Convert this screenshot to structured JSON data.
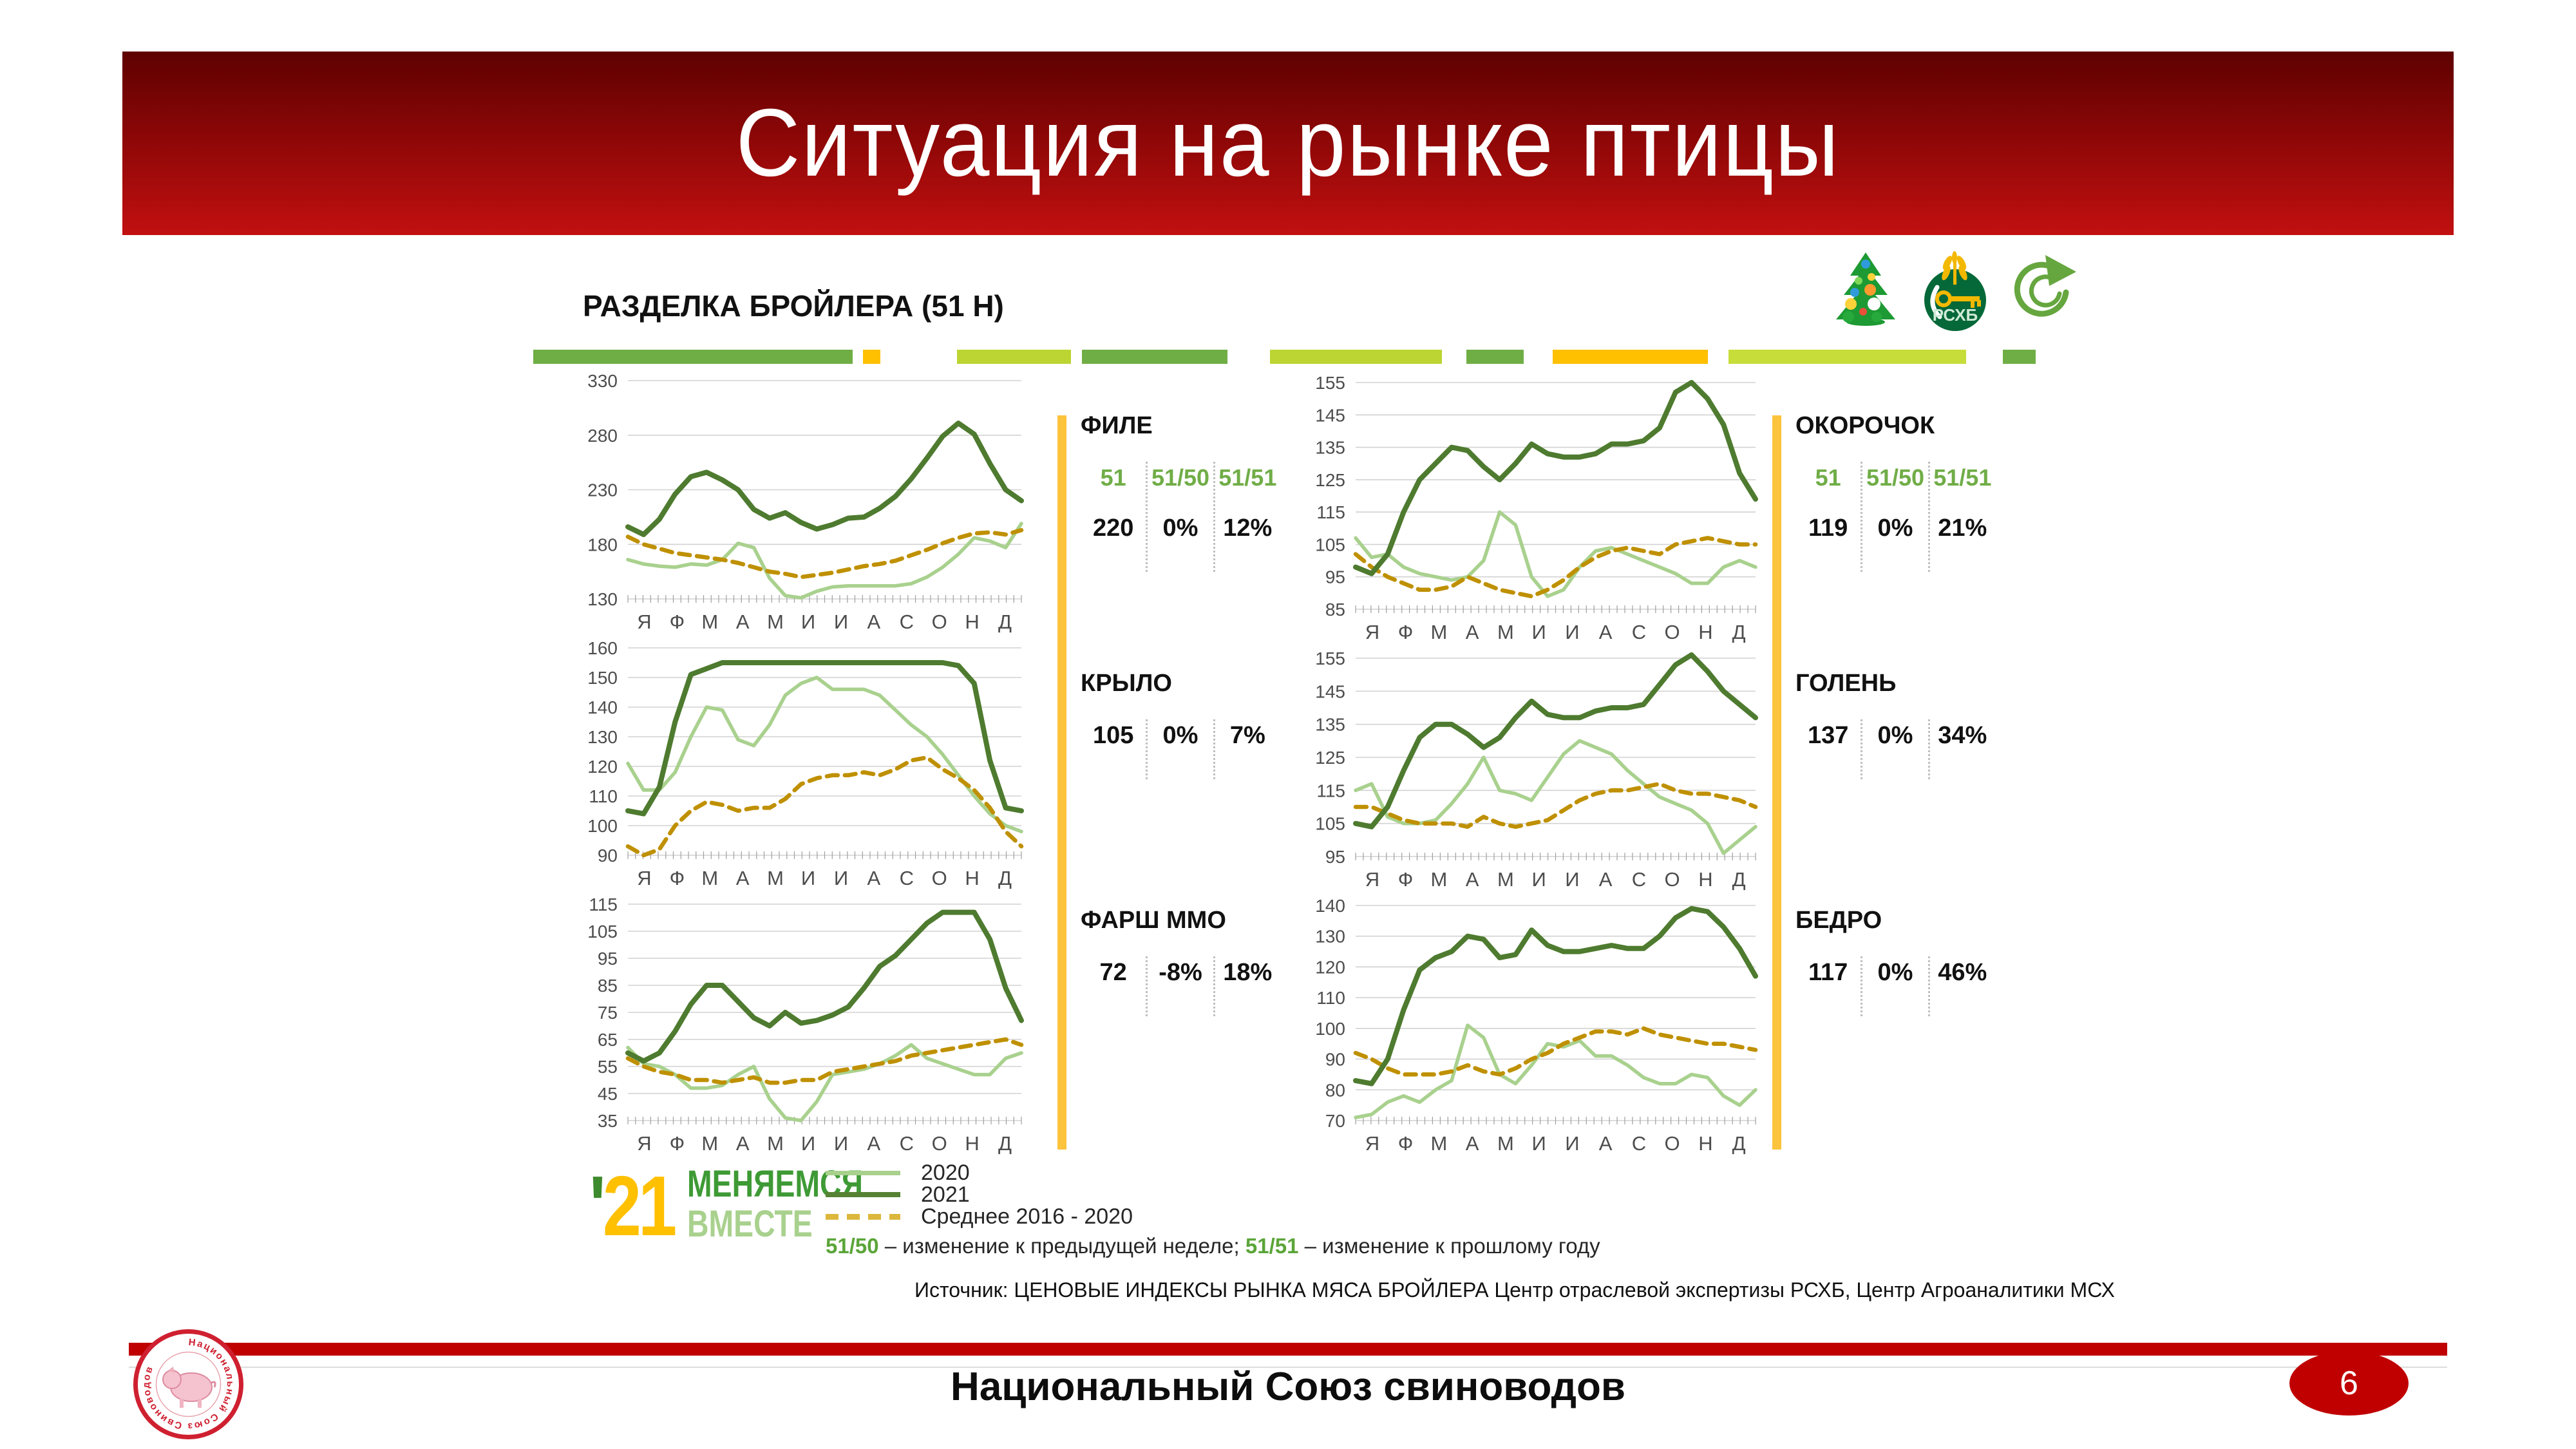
{
  "slide": {
    "title": "Ситуация на рынке птицы",
    "section_title": "РАЗДЕЛКА БРОЙЛЕРА (51 Н)",
    "source": "Источник: ЦЕНОВЫЕ ИНДЕКСЫ РЫНКА МЯСА БРОЙЛЕРА  Центр отраслевой экспертизы РСХБ, Центр Агроаналитики МСХ",
    "footer": "Национальный Союз свиноводов",
    "footer_ring_text": "Национальный Союз Свиноводов",
    "page_number": "6"
  },
  "colors": {
    "accent_red": "#c00000",
    "line_2021": "#4e7b2f",
    "line_2020": "#a9d18e",
    "line_avg": "#bf9000",
    "stat_header_green": "#70ad47",
    "yellow_bar": "#fcc33c",
    "grid": "#d2d2d2"
  },
  "logo_badge": {
    "apos": "'",
    "year": "21",
    "line1": "МЕНЯЕМСЯ",
    "line2": "ВМЕСТЕ"
  },
  "icons": {
    "tree": "christmas-tree",
    "bank": "rshb-logo",
    "refresh": "refresh-pie"
  },
  "legend": {
    "items": [
      {
        "label": "2020"
      },
      {
        "label": "2021"
      },
      {
        "label": "Среднее 2016 - 2020"
      }
    ],
    "note": [
      "51/50",
      " – изменение к предыдущей неделе; ",
      "51/51",
      " – изменение к прошлому году"
    ]
  },
  "stats_headers": [
    "51",
    "51/50",
    "51/51"
  ],
  "decor": {
    "stripes": {
      "left": [
        [
          "#6fae45",
          46
        ],
        [
          "",
          1.5
        ],
        [
          "#ffc000",
          2.5
        ],
        [
          "",
          11
        ],
        [
          "#bcd532",
          16.5
        ],
        [
          "",
          1.5
        ],
        [
          "#6fae45",
          21
        ]
      ],
      "right": [
        [
          "#bcd532",
          21
        ],
        [
          "",
          3
        ],
        [
          "#6fae45",
          7
        ],
        [
          "",
          3.5
        ],
        [
          "#ffc000",
          19
        ],
        [
          "",
          2.5
        ],
        [
          "#c6dd3a",
          29
        ],
        [
          "",
          4.5
        ],
        [
          "#6fae45",
          4
        ],
        [
          "",
          6
        ]
      ]
    }
  },
  "chart_data": [
    {
      "id": "file",
      "label": "ФИЛЕ",
      "type": "line",
      "ylim": [
        130,
        330
      ],
      "ystep": 50,
      "x_categories": [
        "Я",
        "Ф",
        "М",
        "А",
        "М",
        "И",
        "И",
        "А",
        "С",
        "О",
        "Н",
        "Д"
      ],
      "stats": {
        "value": "220",
        "week": "0%",
        "year": "12%"
      },
      "series": [
        {
          "name": "2020",
          "color": "#a9d18e",
          "width": 5.5,
          "dash": false,
          "values": [
            166,
            162,
            160,
            159,
            162,
            161,
            166,
            181,
            177,
            149,
            133,
            131,
            137,
            141,
            142,
            142,
            142,
            142,
            144,
            150,
            159,
            171,
            186,
            183,
            177,
            199
          ]
        },
        {
          "name": "Среднее 2016 - 2020",
          "color": "#bf9000",
          "width": 6.5,
          "dash": true,
          "values": [
            187,
            180,
            176,
            172,
            170,
            168,
            166,
            163,
            159,
            155,
            153,
            150,
            152,
            154,
            157,
            160,
            162,
            165,
            170,
            175,
            181,
            186,
            190,
            191,
            189,
            193
          ]
        },
        {
          "name": "2021",
          "color": "#4e7b2f",
          "width": 8,
          "dash": false,
          "values": [
            196,
            189,
            203,
            226,
            242,
            246,
            239,
            230,
            212,
            204,
            209,
            200,
            194,
            198,
            204,
            205,
            213,
            224,
            240,
            259,
            279,
            291,
            281,
            254,
            230,
            220
          ]
        }
      ]
    },
    {
      "id": "krylo",
      "label": "КРЫЛО",
      "type": "line",
      "ylim": [
        90,
        160
      ],
      "ystep": 10,
      "x_categories": [
        "Я",
        "Ф",
        "М",
        "А",
        "М",
        "И",
        "И",
        "А",
        "С",
        "О",
        "Н",
        "Д"
      ],
      "stats": {
        "value": "105",
        "week": "0%",
        "year": "7%"
      },
      "series": [
        {
          "name": "2020",
          "color": "#a9d18e",
          "width": 5.5,
          "dash": false,
          "values": [
            121,
            112,
            112,
            118,
            130,
            140,
            139,
            129,
            127,
            134,
            144,
            148,
            150,
            146,
            146,
            146,
            144,
            139,
            134,
            130,
            124,
            117,
            110,
            104,
            100,
            98
          ]
        },
        {
          "name": "Среднее 2016 - 2020",
          "color": "#bf9000",
          "width": 6.5,
          "dash": true,
          "values": [
            93,
            90,
            92,
            100,
            105,
            108,
            107,
            105,
            106,
            106,
            109,
            114,
            116,
            117,
            117,
            118,
            117,
            119,
            122,
            123,
            119,
            116,
            112,
            106,
            98,
            93
          ]
        },
        {
          "name": "2021",
          "color": "#4e7b2f",
          "width": 8,
          "dash": false,
          "values": [
            105,
            104,
            113,
            135,
            151,
            153,
            155,
            155,
            155,
            155,
            155,
            155,
            155,
            155,
            155,
            155,
            155,
            155,
            155,
            155,
            155,
            154,
            148,
            122,
            106,
            105
          ]
        }
      ]
    },
    {
      "id": "farsh",
      "label": "ФАРШ ММО",
      "type": "line",
      "ylim": [
        35,
        115
      ],
      "ystep": 10,
      "x_categories": [
        "Я",
        "Ф",
        "М",
        "А",
        "М",
        "И",
        "И",
        "А",
        "С",
        "О",
        "Н",
        "Д"
      ],
      "stats": {
        "value": "72",
        "week": "-8%",
        "year": "18%"
      },
      "series": [
        {
          "name": "2020",
          "color": "#a9d18e",
          "width": 5.5,
          "dash": false,
          "values": [
            62,
            56,
            55,
            52,
            47,
            47,
            48,
            52,
            55,
            43,
            36,
            35,
            42,
            52,
            53,
            54,
            56,
            59,
            63,
            58,
            56,
            54,
            52,
            52,
            58,
            60
          ]
        },
        {
          "name": "Среднее 2016 - 2020",
          "color": "#bf9000",
          "width": 6.5,
          "dash": true,
          "values": [
            58,
            55,
            53,
            52,
            50,
            50,
            49,
            50,
            51,
            49,
            49,
            50,
            50,
            53,
            54,
            55,
            56,
            57,
            59,
            60,
            61,
            62,
            63,
            64,
            65,
            63
          ]
        },
        {
          "name": "2021",
          "color": "#4e7b2f",
          "width": 8,
          "dash": false,
          "values": [
            60,
            57,
            60,
            68,
            78,
            85,
            85,
            79,
            73,
            70,
            75,
            71,
            72,
            74,
            77,
            84,
            92,
            96,
            102,
            108,
            112,
            112,
            112,
            102,
            84,
            72
          ]
        }
      ]
    },
    {
      "id": "okorochok",
      "label": "ОКОРОЧОК",
      "type": "line",
      "ylim": [
        85,
        155
      ],
      "ystep": 10,
      "x_categories": [
        "Я",
        "Ф",
        "М",
        "А",
        "М",
        "И",
        "И",
        "А",
        "С",
        "О",
        "Н",
        "Д"
      ],
      "stats": {
        "value": "119",
        "week": "0%",
        "year": "21%"
      },
      "series": [
        {
          "name": "2020",
          "color": "#a9d18e",
          "width": 5.5,
          "dash": false,
          "values": [
            107,
            101,
            102,
            98,
            96,
            95,
            94,
            95,
            100,
            115,
            111,
            95,
            89,
            91,
            98,
            103,
            104,
            102,
            100,
            98,
            96,
            93,
            93,
            98,
            100,
            98
          ]
        },
        {
          "name": "Среднее 2016 - 2020",
          "color": "#bf9000",
          "width": 6.5,
          "dash": true,
          "values": [
            102,
            98,
            95,
            93,
            91,
            91,
            92,
            95,
            93,
            91,
            90,
            89,
            91,
            94,
            98,
            101,
            103,
            104,
            103,
            102,
            105,
            106,
            107,
            106,
            105,
            105
          ]
        },
        {
          "name": "2021",
          "color": "#4e7b2f",
          "width": 8,
          "dash": false,
          "values": [
            98,
            96,
            102,
            115,
            125,
            130,
            135,
            134,
            129,
            125,
            130,
            136,
            133,
            132,
            132,
            133,
            136,
            136,
            137,
            141,
            152,
            155,
            150,
            142,
            127,
            119
          ]
        }
      ]
    },
    {
      "id": "golen",
      "label": "ГОЛЕНЬ",
      "type": "line",
      "ylim": [
        95,
        155
      ],
      "ystep": 10,
      "x_categories": [
        "Я",
        "Ф",
        "М",
        "А",
        "М",
        "И",
        "И",
        "А",
        "С",
        "О",
        "Н",
        "Д"
      ],
      "stats": {
        "value": "137",
        "week": "0%",
        "year": "34%"
      },
      "series": [
        {
          "name": "2020",
          "color": "#a9d18e",
          "width": 5.5,
          "dash": false,
          "values": [
            115,
            117,
            107,
            105,
            105,
            106,
            111,
            117,
            125,
            115,
            114,
            112,
            119,
            126,
            130,
            128,
            126,
            121,
            117,
            113,
            111,
            109,
            105,
            96,
            100,
            104
          ]
        },
        {
          "name": "Среднее 2016 - 2020",
          "color": "#bf9000",
          "width": 6.5,
          "dash": true,
          "values": [
            110,
            110,
            108,
            106,
            105,
            105,
            105,
            104,
            107,
            105,
            104,
            105,
            106,
            109,
            112,
            114,
            115,
            115,
            116,
            117,
            115,
            114,
            114,
            113,
            112,
            110
          ]
        },
        {
          "name": "2021",
          "color": "#4e7b2f",
          "width": 8,
          "dash": false,
          "values": [
            105,
            104,
            110,
            121,
            131,
            135,
            135,
            132,
            128,
            131,
            137,
            142,
            138,
            137,
            137,
            139,
            140,
            140,
            141,
            147,
            153,
            156,
            151,
            145,
            141,
            137
          ]
        }
      ]
    },
    {
      "id": "bedro",
      "label": "БЕДРО",
      "type": "line",
      "ylim": [
        70,
        140
      ],
      "ystep": 10,
      "x_categories": [
        "Я",
        "Ф",
        "М",
        "А",
        "М",
        "И",
        "И",
        "А",
        "С",
        "О",
        "Н",
        "Д"
      ],
      "stats": {
        "value": "117",
        "week": "0%",
        "year": "46%"
      },
      "series": [
        {
          "name": "2020",
          "color": "#a9d18e",
          "width": 5.5,
          "dash": false,
          "values": [
            71,
            72,
            76,
            78,
            76,
            80,
            83,
            101,
            97,
            85,
            82,
            88,
            95,
            94,
            96,
            91,
            91,
            88,
            84,
            82,
            82,
            85,
            84,
            78,
            75,
            80
          ]
        },
        {
          "name": "Среднее 2016 - 2020",
          "color": "#bf9000",
          "width": 6.5,
          "dash": true,
          "values": [
            92,
            90,
            87,
            85,
            85,
            85,
            86,
            88,
            86,
            85,
            87,
            90,
            92,
            95,
            97,
            99,
            99,
            98,
            100,
            98,
            97,
            96,
            95,
            95,
            94,
            93
          ]
        },
        {
          "name": "2021",
          "color": "#4e7b2f",
          "width": 8,
          "dash": false,
          "values": [
            83,
            82,
            90,
            106,
            119,
            123,
            125,
            130,
            129,
            123,
            124,
            132,
            127,
            125,
            125,
            126,
            127,
            126,
            126,
            130,
            136,
            139,
            138,
            133,
            126,
            117
          ]
        }
      ]
    }
  ]
}
